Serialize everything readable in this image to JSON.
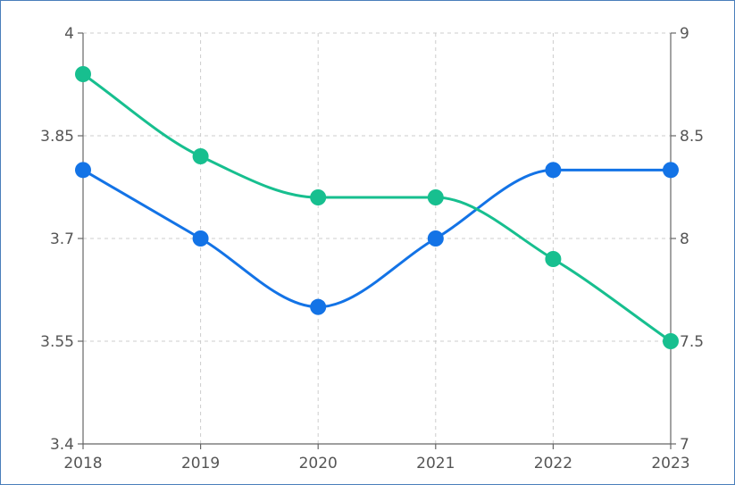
{
  "chart_data": {
    "type": "line",
    "title": "",
    "xlabel": "",
    "ylabel": "",
    "categories": [
      "2018",
      "2019",
      "2020",
      "2021",
      "2022",
      "2023"
    ],
    "y_left": {
      "range": [
        3.4,
        4
      ],
      "ticks": [
        "3.4",
        "3.55",
        "3.7",
        "3.85",
        "4"
      ]
    },
    "y_right": {
      "range": [
        7,
        9
      ],
      "ticks": [
        "7",
        "7.5",
        "8",
        "8.5",
        "9"
      ]
    },
    "grid": true,
    "smooth": true,
    "series": [
      {
        "axis": "left",
        "color": "#1373e6",
        "values": [
          3.8,
          3.7,
          3.6,
          3.7,
          3.8,
          3.8
        ]
      },
      {
        "axis": "right",
        "color": "#17bf8f",
        "values": [
          8.8,
          8.4,
          8.2,
          8.2,
          7.9,
          7.5
        ]
      }
    ]
  }
}
